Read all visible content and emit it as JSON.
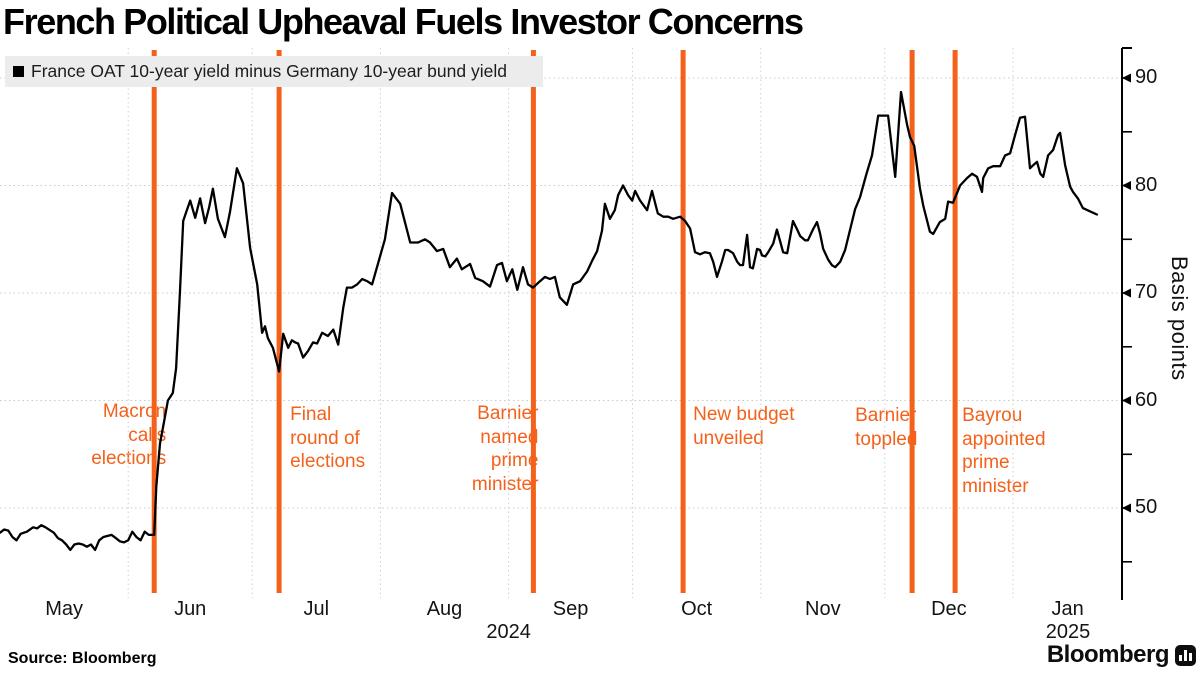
{
  "page": {
    "title": "French Political Upheaval Fuels Investor Concerns",
    "source": "Source: Bloomberg",
    "brand": "Bloomberg"
  },
  "legend": {
    "label": "France OAT 10-year yield minus Germany 10-year bund yield"
  },
  "colors": {
    "accent_orange": "#F4611B",
    "series_black": "#000000",
    "grid_gray": "#c9c9c9",
    "legend_bg": "#ececec",
    "axis_black": "#000000"
  },
  "chart_data": {
    "type": "line",
    "title": "French Political Upheaval Fuels Investor Concerns",
    "series_label": "France OAT 10-year yield minus Germany 10-year bund yield",
    "ylabel": "Basis points",
    "unit": "basis points",
    "x_unit": "days since 2024-05-01",
    "ylim": [
      42,
      93
    ],
    "yticks": [
      50,
      60,
      70,
      80,
      90
    ],
    "yticks_minor": [
      45,
      55,
      65,
      75,
      85
    ],
    "grid": true,
    "legend_position": "top-left",
    "months": [
      {
        "label": "May",
        "start": 0,
        "end": 31
      },
      {
        "label": "Jun",
        "start": 31,
        "end": 61
      },
      {
        "label": "Jul",
        "start": 61,
        "end": 92
      },
      {
        "label": "Aug",
        "start": 92,
        "end": 123
      },
      {
        "label": "Sep",
        "start": 123,
        "end": 153
      },
      {
        "label": "Oct",
        "start": 153,
        "end": 184
      },
      {
        "label": "Nov",
        "start": 184,
        "end": 214
      },
      {
        "label": "Dec",
        "start": 214,
        "end": 245
      },
      {
        "label": "Jan",
        "start": 245,
        "end": 271.4
      }
    ],
    "year_labels": [
      {
        "text": "2024",
        "day": 123
      },
      {
        "text": "2025",
        "day": 258.3
      }
    ],
    "events": [
      {
        "id": "macron-calls-elections",
        "day": 37.3,
        "lines": [
          "Macron",
          "calls",
          "elections"
        ],
        "align": "right"
      },
      {
        "id": "final-round-elections",
        "day": 67.5,
        "lines": [
          "Final",
          "round of",
          "elections"
        ],
        "align": "left"
      },
      {
        "id": "barnier-named-pm",
        "day": 129,
        "lines": [
          "Barnier",
          "named",
          "prime",
          "minister"
        ],
        "align": "right"
      },
      {
        "id": "new-budget-unveiled",
        "day": 165.2,
        "lines": [
          "New budget",
          "unveiled"
        ],
        "align": "left"
      },
      {
        "id": "barnier-toppled",
        "day": 220.6,
        "lines": [
          "Barnier",
          "toppled"
        ],
        "align": "left"
      },
      {
        "id": "bayrou-appointed-pm",
        "day": 231,
        "lines": [
          "Bayrou",
          "appointed",
          "prime",
          "minister"
        ],
        "align": "left"
      }
    ],
    "points": [
      [
        0,
        47.7
      ],
      [
        1,
        48
      ],
      [
        2,
        47.9
      ],
      [
        3,
        47.3
      ],
      [
        4,
        47
      ],
      [
        5,
        47.6
      ],
      [
        6.5,
        47.8
      ],
      [
        8,
        48.2
      ],
      [
        9,
        48.1
      ],
      [
        10,
        48.4
      ],
      [
        11,
        48.2
      ],
      [
        13,
        47.7
      ],
      [
        14,
        47.2
      ],
      [
        15,
        47
      ],
      [
        16,
        46.6
      ],
      [
        17,
        46.1
      ],
      [
        18,
        46.6
      ],
      [
        19,
        46.7
      ],
      [
        20,
        46.6
      ],
      [
        21,
        46.4
      ],
      [
        22,
        46.6
      ],
      [
        23,
        46.1
      ],
      [
        24,
        47
      ],
      [
        25,
        47.3
      ],
      [
        27,
        47.5
      ],
      [
        28,
        47.2
      ],
      [
        29,
        46.9
      ],
      [
        30,
        46.8
      ],
      [
        31,
        47
      ],
      [
        32,
        47.8
      ],
      [
        33,
        47.3
      ],
      [
        34,
        47
      ],
      [
        35,
        47.8
      ],
      [
        36,
        47.5
      ],
      [
        37.3,
        47.5
      ],
      [
        37.8,
        52
      ],
      [
        38.7,
        56
      ],
      [
        39.9,
        58.5
      ],
      [
        40.6,
        60
      ],
      [
        41.8,
        60.7
      ],
      [
        42.6,
        63
      ],
      [
        43.5,
        70
      ],
      [
        44.3,
        76.7
      ],
      [
        45,
        77.5
      ],
      [
        46,
        78.6
      ],
      [
        47.2,
        77
      ],
      [
        48.4,
        78.8
      ],
      [
        49.6,
        76.5
      ],
      [
        50.6,
        78
      ],
      [
        51.5,
        79.7
      ],
      [
        52.7,
        76.9
      ],
      [
        54.4,
        75.2
      ],
      [
        55.6,
        77.5
      ],
      [
        57.3,
        81.6
      ],
      [
        58.8,
        80.2
      ],
      [
        60.5,
        74.2
      ],
      [
        62.2,
        70.8
      ],
      [
        63.4,
        66.3
      ],
      [
        64.1,
        66.9
      ],
      [
        64.8,
        65.8
      ],
      [
        66,
        64.9
      ],
      [
        67.5,
        62.7
      ],
      [
        68.5,
        66.2
      ],
      [
        69.7,
        64.9
      ],
      [
        70.6,
        65.6
      ],
      [
        71.4,
        65.4
      ],
      [
        72.1,
        65.3
      ],
      [
        73.3,
        64
      ],
      [
        74.5,
        64.6
      ],
      [
        75.7,
        65.4
      ],
      [
        76.7,
        65.3
      ],
      [
        77.9,
        66.3
      ],
      [
        79.3,
        66
      ],
      [
        80.6,
        66.6
      ],
      [
        81.8,
        65.2
      ],
      [
        83,
        68.6
      ],
      [
        83.9,
        70.5
      ],
      [
        85.1,
        70.5
      ],
      [
        86.4,
        70.8
      ],
      [
        87.6,
        71.3
      ],
      [
        88.8,
        71.1
      ],
      [
        90,
        70.8
      ],
      [
        93.1,
        75
      ],
      [
        94.8,
        79.3
      ],
      [
        96.8,
        78.3
      ],
      [
        99.2,
        74.7
      ],
      [
        101.1,
        74.7
      ],
      [
        102.8,
        75
      ],
      [
        104,
        74.7
      ],
      [
        105.7,
        73.9
      ],
      [
        107.2,
        74.1
      ],
      [
        108.8,
        72.4
      ],
      [
        110.5,
        73.2
      ],
      [
        111.7,
        72.2
      ],
      [
        113.7,
        72.7
      ],
      [
        114.9,
        71.4
      ],
      [
        116.8,
        71.1
      ],
      [
        118.5,
        70.6
      ],
      [
        120.2,
        72.6
      ],
      [
        121.4,
        72.8
      ],
      [
        122.6,
        71.1
      ],
      [
        123.9,
        72.2
      ],
      [
        125.1,
        70.3
      ],
      [
        126.5,
        72.4
      ],
      [
        127.7,
        70.8
      ],
      [
        128.9,
        70.5
      ],
      [
        130.6,
        71.1
      ],
      [
        131.8,
        71.5
      ],
      [
        133,
        71.3
      ],
      [
        134.2,
        71.5
      ],
      [
        135.4,
        69.6
      ],
      [
        137.1,
        68.9
      ],
      [
        138.6,
        70.8
      ],
      [
        140.3,
        71.1
      ],
      [
        142,
        72
      ],
      [
        143.2,
        73
      ],
      [
        144.4,
        73.9
      ],
      [
        145.6,
        75.8
      ],
      [
        146.3,
        78.3
      ],
      [
        147.5,
        76.9
      ],
      [
        148.7,
        77.7
      ],
      [
        149.5,
        79.1
      ],
      [
        150.7,
        80
      ],
      [
        151.9,
        79.1
      ],
      [
        152.9,
        78.6
      ],
      [
        153.6,
        79.5
      ],
      [
        154.8,
        78.6
      ],
      [
        156.5,
        77.7
      ],
      [
        157.7,
        79.5
      ],
      [
        159.1,
        77.4
      ],
      [
        160.4,
        77.1
      ],
      [
        161.6,
        77.1
      ],
      [
        162.8,
        76.9
      ],
      [
        164.5,
        77.1
      ],
      [
        165.7,
        76.7
      ],
      [
        166.9,
        76
      ],
      [
        168.1,
        73.8
      ],
      [
        169.3,
        73.6
      ],
      [
        170.5,
        73.8
      ],
      [
        171.7,
        73.7
      ],
      [
        172.5,
        72.9
      ],
      [
        173.4,
        71.5
      ],
      [
        174.6,
        72.9
      ],
      [
        175.4,
        74
      ],
      [
        176.1,
        74
      ],
      [
        177.3,
        73.7
      ],
      [
        178.3,
        72.9
      ],
      [
        179,
        72.6
      ],
      [
        179.7,
        72.6
      ],
      [
        180.7,
        75.4
      ],
      [
        181.4,
        72.4
      ],
      [
        182.1,
        72.3
      ],
      [
        183.1,
        74.1
      ],
      [
        183.8,
        74
      ],
      [
        184.3,
        73.5
      ],
      [
        185.1,
        73.4
      ],
      [
        185.8,
        73.8
      ],
      [
        187,
        74.6
      ],
      [
        187.9,
        75.9
      ],
      [
        188.7,
        74.8
      ],
      [
        189.4,
        73.8
      ],
      [
        190.4,
        73.7
      ],
      [
        191.8,
        76.7
      ],
      [
        192.8,
        75.9
      ],
      [
        193.5,
        75.3
      ],
      [
        194.7,
        74.9
      ],
      [
        195.4,
        74.9
      ],
      [
        196.6,
        75.9
      ],
      [
        197.6,
        76.6
      ],
      [
        198.3,
        75.6
      ],
      [
        199.1,
        74.1
      ],
      [
        200.3,
        73.1
      ],
      [
        201.2,
        72.6
      ],
      [
        202,
        72.4
      ],
      [
        203.2,
        72.9
      ],
      [
        204.4,
        74
      ],
      [
        205.6,
        75.9
      ],
      [
        206.8,
        77.8
      ],
      [
        208,
        78.9
      ],
      [
        209.5,
        81
      ],
      [
        210.9,
        82.8
      ],
      [
        212.4,
        86.5
      ],
      [
        214.8,
        86.5
      ],
      [
        216.5,
        80.8
      ],
      [
        217.9,
        88.7
      ],
      [
        219.4,
        85.6
      ],
      [
        220.1,
        84.5
      ],
      [
        221.1,
        83.7
      ],
      [
        222.5,
        79.7
      ],
      [
        223.3,
        78.1
      ],
      [
        224.9,
        75.7
      ],
      [
        225.7,
        75.5
      ],
      [
        227.3,
        76.6
      ],
      [
        228.6,
        76.9
      ],
      [
        229.3,
        78.5
      ],
      [
        230.5,
        78.4
      ],
      [
        232.2,
        80
      ],
      [
        233.9,
        80.7
      ],
      [
        235.1,
        81.1
      ],
      [
        236.3,
        80.8
      ],
      [
        237.5,
        79.4
      ],
      [
        237.8,
        80.7
      ],
      [
        239,
        81.6
      ],
      [
        240.2,
        81.8
      ],
      [
        241.9,
        81.8
      ],
      [
        243.1,
        82.8
      ],
      [
        244.3,
        83
      ],
      [
        245.5,
        84.7
      ],
      [
        246.7,
        86.3
      ],
      [
        247.9,
        86.4
      ],
      [
        249.1,
        81.6
      ],
      [
        249.9,
        81.9
      ],
      [
        250.8,
        82.2
      ],
      [
        251.6,
        81.1
      ],
      [
        252.3,
        80.8
      ],
      [
        253.5,
        82.8
      ],
      [
        254.7,
        83.3
      ],
      [
        255.9,
        84.7
      ],
      [
        256.4,
        84.9
      ],
      [
        257.6,
        81.9
      ],
      [
        258.8,
        79.9
      ],
      [
        259.5,
        79.4
      ],
      [
        260.7,
        78.8
      ],
      [
        261.9,
        77.9
      ],
      [
        263.6,
        77.6
      ],
      [
        265.3,
        77.3
      ]
    ]
  }
}
